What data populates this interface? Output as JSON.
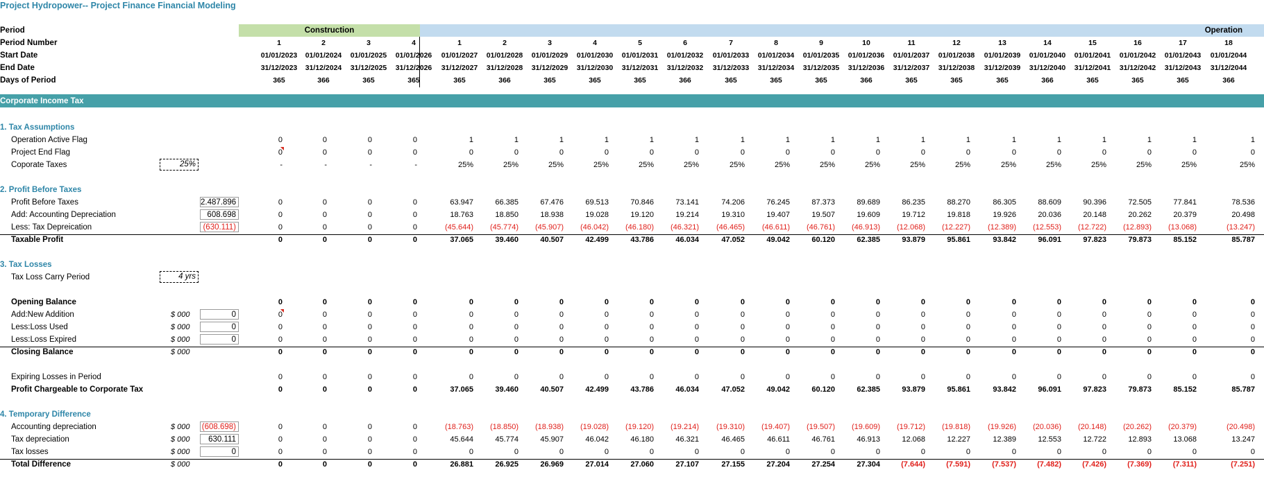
{
  "title": "Project Hydropower-- Project Finance Financial Modeling",
  "colors": {
    "accent": "#2e86a8",
    "section_bar": "#46a0a8",
    "construction_bg": "#c4dfa9",
    "operation_bg": "#c2dbef",
    "negative": "#e0201b"
  },
  "header": {
    "labels": {
      "period": "Period",
      "period_number": "Period Number",
      "start_date": "Start Date",
      "end_date": "End Date",
      "days": "Days of Period"
    },
    "construction_label": "Construction",
    "operation_label": "Operation",
    "period_numbers": [
      "1",
      "2",
      "3",
      "4",
      "1",
      "2",
      "3",
      "4",
      "5",
      "6",
      "7",
      "8",
      "9",
      "10",
      "11",
      "12",
      "13",
      "14",
      "15",
      "16",
      "17",
      "18"
    ],
    "start_dates": [
      "01/01/2023",
      "01/01/2024",
      "01/01/2025",
      "01/01/2026",
      "01/01/2027",
      "01/01/2028",
      "01/01/2029",
      "01/01/2030",
      "01/01/2031",
      "01/01/2032",
      "01/01/2033",
      "01/01/2034",
      "01/01/2035",
      "01/01/2036",
      "01/01/2037",
      "01/01/2038",
      "01/01/2039",
      "01/01/2040",
      "01/01/2041",
      "01/01/2042",
      "01/01/2043",
      "01/01/2044"
    ],
    "end_dates": [
      "31/12/2023",
      "31/12/2024",
      "31/12/2025",
      "31/12/2026",
      "31/12/2027",
      "31/12/2028",
      "31/12/2029",
      "31/12/2030",
      "31/12/2031",
      "31/12/2032",
      "31/12/2033",
      "31/12/2034",
      "31/12/2035",
      "31/12/2036",
      "31/12/2037",
      "31/12/2038",
      "31/12/2039",
      "31/12/2040",
      "31/12/2041",
      "31/12/2042",
      "31/12/2043",
      "31/12/2044"
    ],
    "days": [
      "365",
      "366",
      "365",
      "365",
      "365",
      "366",
      "365",
      "365",
      "365",
      "366",
      "365",
      "365",
      "365",
      "366",
      "365",
      "365",
      "365",
      "366",
      "365",
      "365",
      "365",
      "366"
    ]
  },
  "section_title": "Corporate Income Tax",
  "sections": [
    {
      "title": "1. Tax Assumptions",
      "rows": [
        {
          "label": "Operation Active Flag",
          "values": [
            "0",
            "0",
            "0",
            "0",
            "1",
            "1",
            "1",
            "1",
            "1",
            "1",
            "1",
            "1",
            "1",
            "1",
            "1",
            "1",
            "1",
            "1",
            "1",
            "1",
            "1",
            "1"
          ]
        },
        {
          "label": "Project End Flag",
          "values": [
            "0",
            "0",
            "0",
            "0",
            "0",
            "0",
            "0",
            "0",
            "0",
            "0",
            "0",
            "0",
            "0",
            "0",
            "0",
            "0",
            "0",
            "0",
            "0",
            "0",
            "0",
            "0"
          ]
        },
        {
          "label": "Coporate Taxes",
          "input": "25%",
          "values": [
            "-",
            "-",
            "-",
            "-",
            "25%",
            "25%",
            "25%",
            "25%",
            "25%",
            "25%",
            "25%",
            "25%",
            "25%",
            "25%",
            "25%",
            "25%",
            "25%",
            "25%",
            "25%",
            "25%",
            "25%",
            "25%"
          ]
        }
      ]
    },
    {
      "title": "2. Profit Before Taxes",
      "rows": [
        {
          "label": "Profit Before Taxes",
          "total": "2.487.896",
          "values": [
            "0",
            "0",
            "0",
            "0",
            "63.947",
            "66.385",
            "67.476",
            "69.513",
            "70.846",
            "73.141",
            "74.206",
            "76.245",
            "87.373",
            "89.689",
            "86.235",
            "88.270",
            "86.305",
            "88.609",
            "90.396",
            "72.505",
            "77.841",
            "78.536"
          ]
        },
        {
          "label": "Add: Accounting Depreciation",
          "total": "608.698",
          "values": [
            "0",
            "0",
            "0",
            "0",
            "18.763",
            "18.850",
            "18.938",
            "19.028",
            "19.120",
            "19.214",
            "19.310",
            "19.407",
            "19.507",
            "19.609",
            "19.712",
            "19.818",
            "19.926",
            "20.036",
            "20.148",
            "20.262",
            "20.379",
            "20.498"
          ]
        },
        {
          "label": "Less: Tax Depreication",
          "total": "(630.111)",
          "values": [
            "0",
            "0",
            "0",
            "0",
            "(45.644)",
            "(45.774)",
            "(45.907)",
            "(46.042)",
            "(46.180)",
            "(46.321)",
            "(46.465)",
            "(46.611)",
            "(46.761)",
            "(46.913)",
            "(12.068)",
            "(12.227)",
            "(12.389)",
            "(12.553)",
            "(12.722)",
            "(12.893)",
            "(13.068)",
            "(13.247)"
          ]
        },
        {
          "label": "Taxable Profit",
          "values": [
            "0",
            "0",
            "0",
            "0",
            "37.065",
            "39.460",
            "40.507",
            "42.499",
            "43.786",
            "46.034",
            "47.052",
            "49.042",
            "60.120",
            "62.385",
            "93.879",
            "95.861",
            "93.842",
            "96.091",
            "97.823",
            "79.873",
            "85.152",
            "85.787"
          ]
        }
      ]
    },
    {
      "title": "3. Tax Losses",
      "carry_label": "Tax Loss Carry Period",
      "carry_value": "4 yrs",
      "rows": [
        {
          "label": "Opening Balance",
          "values": [
            "0",
            "0",
            "0",
            "0",
            "0",
            "0",
            "0",
            "0",
            "0",
            "0",
            "0",
            "0",
            "0",
            "0",
            "0",
            "0",
            "0",
            "0",
            "0",
            "0",
            "0",
            "0"
          ]
        },
        {
          "label": "Add:New Addition",
          "unit": "$ 000",
          "total": "0",
          "values": [
            "0",
            "0",
            "0",
            "0",
            "0",
            "0",
            "0",
            "0",
            "0",
            "0",
            "0",
            "0",
            "0",
            "0",
            "0",
            "0",
            "0",
            "0",
            "0",
            "0",
            "0",
            "0"
          ]
        },
        {
          "label": "Less:Loss Used",
          "unit": "$ 000",
          "total": "0",
          "values": [
            "0",
            "0",
            "0",
            "0",
            "0",
            "0",
            "0",
            "0",
            "0",
            "0",
            "0",
            "0",
            "0",
            "0",
            "0",
            "0",
            "0",
            "0",
            "0",
            "0",
            "0",
            "0"
          ]
        },
        {
          "label": "Less:Loss Expired",
          "unit": "$ 000",
          "total": "0",
          "values": [
            "0",
            "0",
            "0",
            "0",
            "0",
            "0",
            "0",
            "0",
            "0",
            "0",
            "0",
            "0",
            "0",
            "0",
            "0",
            "0",
            "0",
            "0",
            "0",
            "0",
            "0",
            "0"
          ]
        },
        {
          "label": "Closing Balance",
          "unit": "$ 000",
          "values": [
            "0",
            "0",
            "0",
            "0",
            "0",
            "0",
            "0",
            "0",
            "0",
            "0",
            "0",
            "0",
            "0",
            "0",
            "0",
            "0",
            "0",
            "0",
            "0",
            "0",
            "0",
            "0"
          ]
        },
        {
          "label": "Expiring Losses in Period",
          "values": [
            "0",
            "0",
            "0",
            "0",
            "0",
            "0",
            "0",
            "0",
            "0",
            "0",
            "0",
            "0",
            "0",
            "0",
            "0",
            "0",
            "0",
            "0",
            "0",
            "0",
            "0",
            "0"
          ]
        },
        {
          "label": "Profit Chargeable to Corporate Tax",
          "values": [
            "0",
            "0",
            "0",
            "0",
            "37.065",
            "39.460",
            "40.507",
            "42.499",
            "43.786",
            "46.034",
            "47.052",
            "49.042",
            "60.120",
            "62.385",
            "93.879",
            "95.861",
            "93.842",
            "96.091",
            "97.823",
            "79.873",
            "85.152",
            "85.787"
          ]
        }
      ]
    },
    {
      "title": "4. Temporary Difference",
      "rows": [
        {
          "label": "Accounting depreciation",
          "unit": "$ 000",
          "total": "(608.698)",
          "values": [
            "0",
            "0",
            "0",
            "0",
            "(18.763)",
            "(18.850)",
            "(18.938)",
            "(19.028)",
            "(19.120)",
            "(19.214)",
            "(19.310)",
            "(19.407)",
            "(19.507)",
            "(19.609)",
            "(19.712)",
            "(19.818)",
            "(19.926)",
            "(20.036)",
            "(20.148)",
            "(20.262)",
            "(20.379)",
            "(20.498)"
          ]
        },
        {
          "label": "Tax depreciation",
          "unit": "$ 000",
          "total": "630.111",
          "values": [
            "0",
            "0",
            "0",
            "0",
            "45.644",
            "45.774",
            "45.907",
            "46.042",
            "46.180",
            "46.321",
            "46.465",
            "46.611",
            "46.761",
            "46.913",
            "12.068",
            "12.227",
            "12.389",
            "12.553",
            "12.722",
            "12.893",
            "13.068",
            "13.247"
          ]
        },
        {
          "label": "Tax losses",
          "unit": "$ 000",
          "total": "0",
          "values": [
            "0",
            "0",
            "0",
            "0",
            "0",
            "0",
            "0",
            "0",
            "0",
            "0",
            "0",
            "0",
            "0",
            "0",
            "0",
            "0",
            "0",
            "0",
            "0",
            "0",
            "0",
            "0"
          ]
        },
        {
          "label": "Total Difference",
          "unit": "$ 000",
          "values": [
            "0",
            "0",
            "0",
            "0",
            "26.881",
            "26.925",
            "26.969",
            "27.014",
            "27.060",
            "27.107",
            "27.155",
            "27.204",
            "27.254",
            "27.304",
            "(7.644)",
            "(7.591)",
            "(7.537)",
            "(7.482)",
            "(7.426)",
            "(7.369)",
            "(7.311)",
            "(7.251)"
          ]
        }
      ]
    }
  ]
}
